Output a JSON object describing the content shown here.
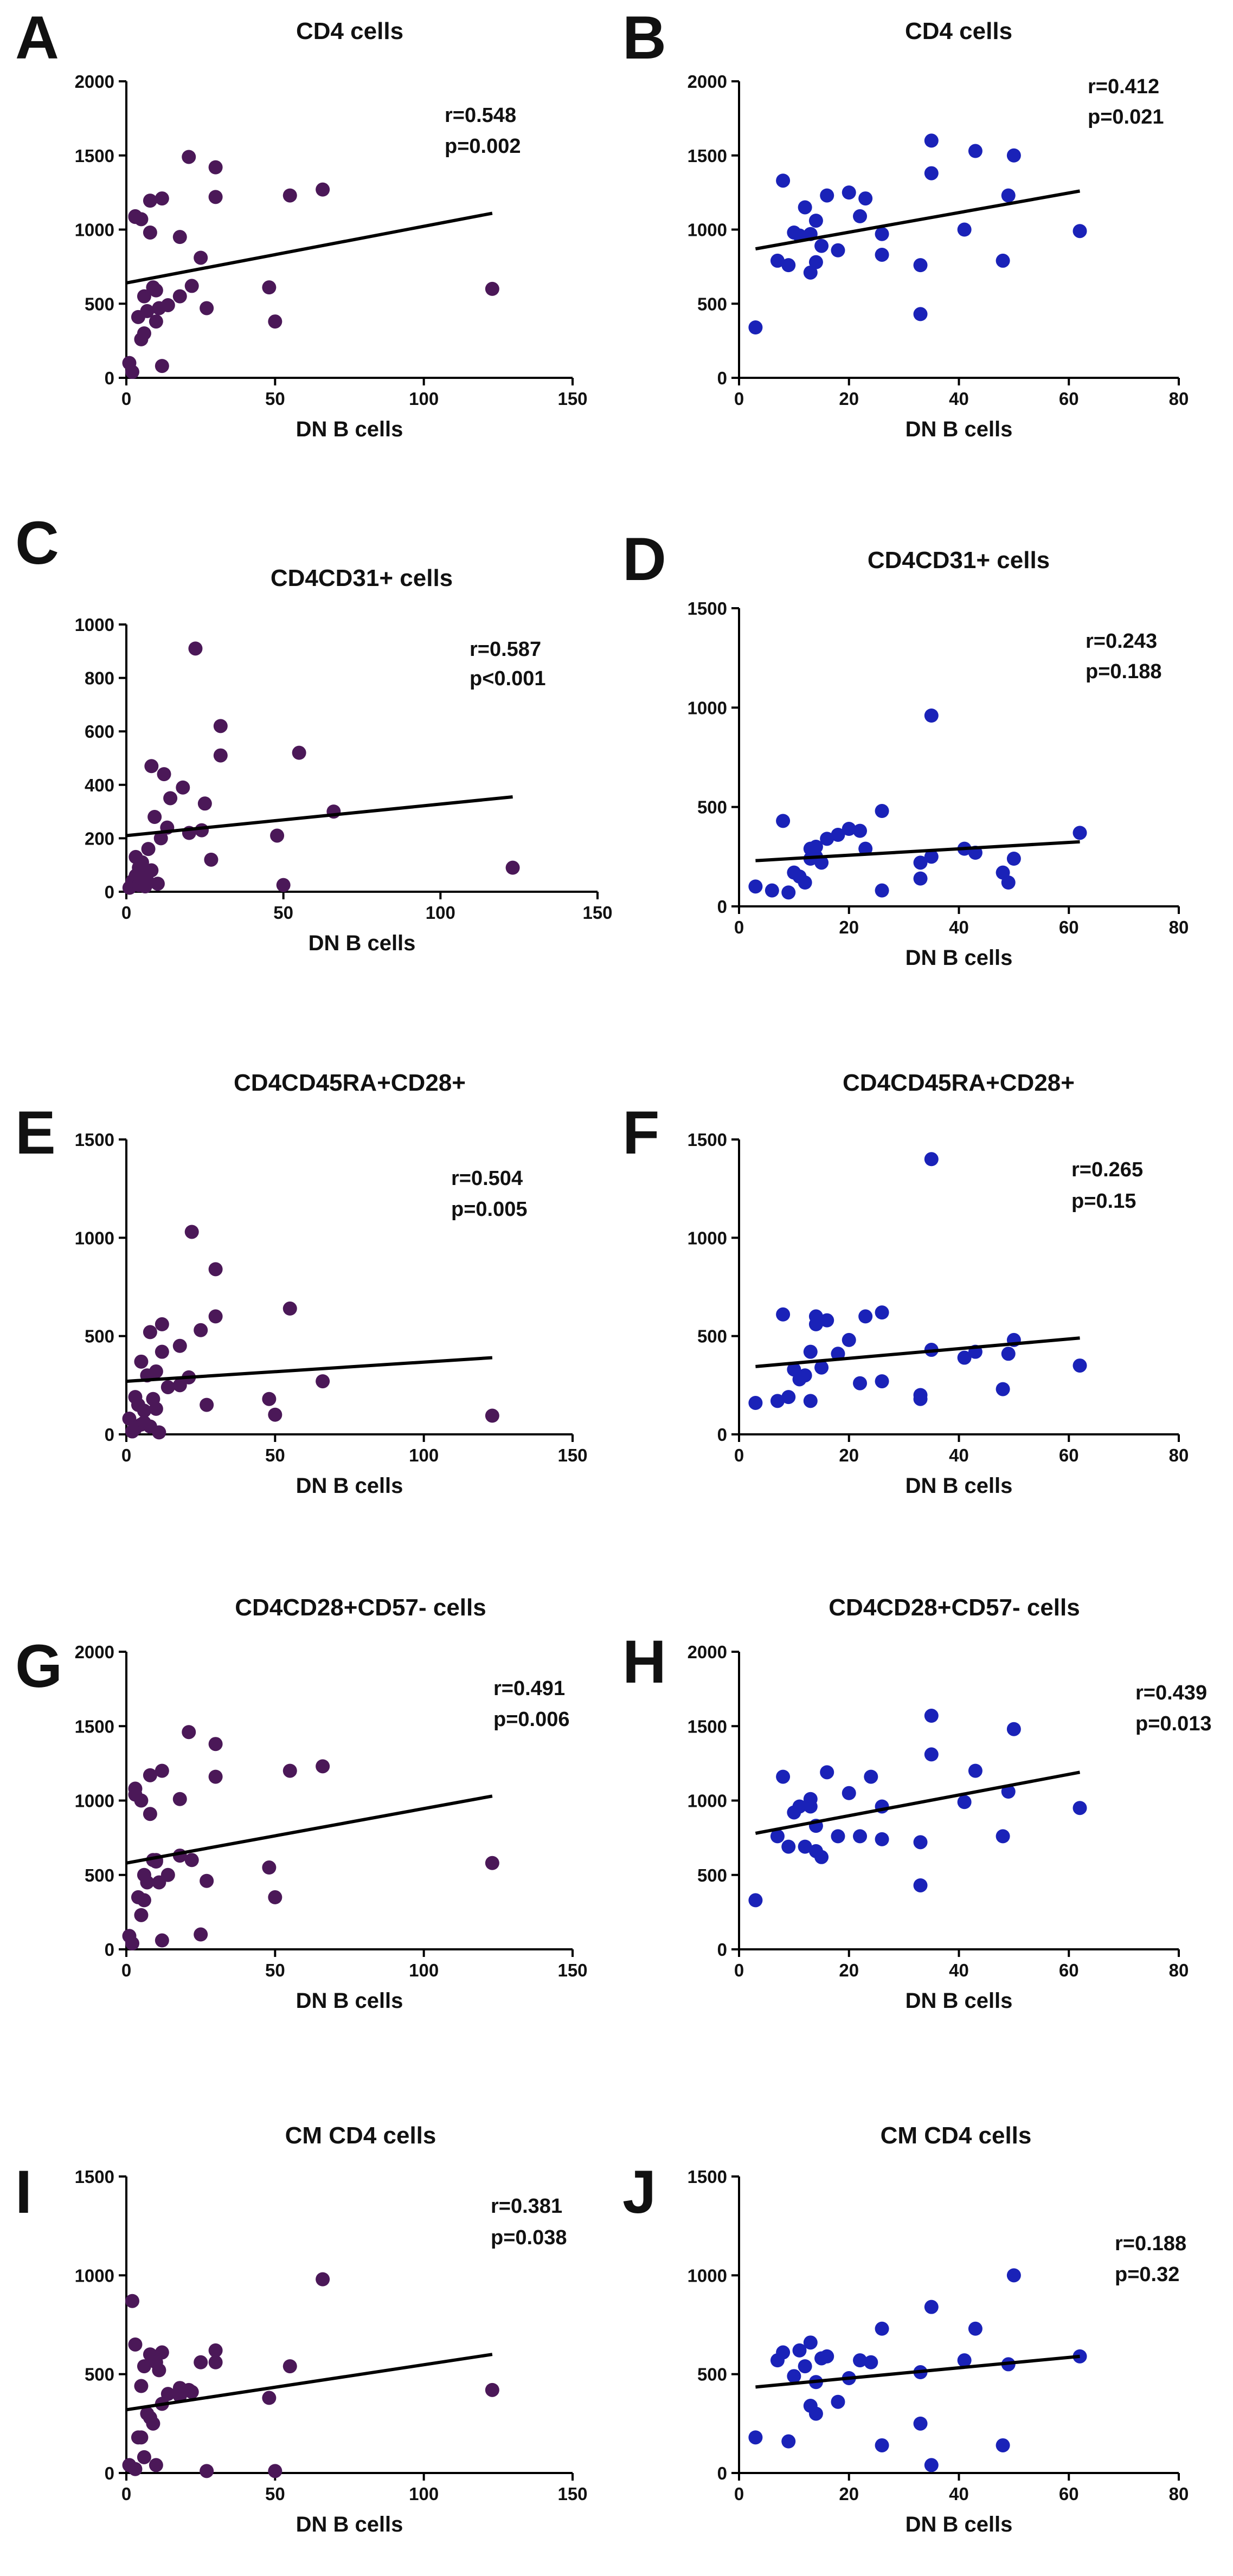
{
  "figure_colors": {
    "series_left": "#4b1858",
    "series_right": "#1a22b8",
    "fit_line": "#000000",
    "axis": "#000000"
  },
  "chart_data": [
    {
      "panel": "A",
      "type": "scatter",
      "title": "CD4 cells",
      "xlabel": "DN B cells",
      "ylabel": "",
      "xlim": [
        0,
        150
      ],
      "ylim": [
        0,
        2000
      ],
      "xticks": [
        0,
        50,
        100,
        150
      ],
      "yticks": [
        0,
        500,
        1000,
        1500,
        2000
      ],
      "r_text": "r=0.548",
      "p_text": "p=0.002",
      "color": "#4b1858",
      "fit": {
        "x": [
          0,
          123
        ],
        "y": [
          640,
          1110
        ]
      },
      "x": [
        1,
        2,
        3,
        3,
        4,
        5,
        5,
        6,
        6,
        7,
        8,
        8,
        9,
        10,
        10,
        11,
        12,
        12,
        14,
        18,
        18,
        21,
        22,
        25,
        27,
        30,
        30,
        48,
        50,
        55,
        66,
        123
      ],
      "y": [
        100,
        40,
        1090,
        1085,
        410,
        1070,
        260,
        550,
        300,
        450,
        1195,
        980,
        610,
        590,
        380,
        470,
        80,
        1210,
        490,
        950,
        550,
        1490,
        620,
        810,
        470,
        1420,
        1220,
        610,
        380,
        1230,
        1270,
        600
      ]
    },
    {
      "panel": "B",
      "type": "scatter",
      "title": "CD4 cells",
      "xlabel": "DN B cells",
      "ylabel": "",
      "xlim": [
        0,
        80
      ],
      "ylim": [
        0,
        2000
      ],
      "xticks": [
        0,
        20,
        40,
        60,
        80
      ],
      "yticks": [
        0,
        500,
        1000,
        1500,
        2000
      ],
      "r_text": "r=0.412",
      "p_text": "p=0.021",
      "color": "#1a22b8",
      "fit": {
        "x": [
          3,
          62
        ],
        "y": [
          870,
          1260
        ]
      },
      "x": [
        3,
        7,
        8,
        9,
        10,
        11,
        12,
        13,
        13,
        14,
        14,
        15,
        16,
        18,
        20,
        22,
        23,
        26,
        26,
        33,
        33,
        35,
        35,
        41,
        43,
        48,
        49,
        50,
        62
      ],
      "y": [
        340,
        790,
        1330,
        760,
        980,
        960,
        1150,
        710,
        970,
        1060,
        780,
        890,
        1230,
        860,
        1250,
        1090,
        1210,
        970,
        830,
        760,
        430,
        1600,
        1380,
        1000,
        1530,
        790,
        1230,
        1500,
        990
      ]
    },
    {
      "panel": "C",
      "type": "scatter",
      "title": "CD4CD31+ cells",
      "xlabel": "DN B cells",
      "ylabel": "",
      "xlim": [
        0,
        150
      ],
      "ylim": [
        0,
        1000
      ],
      "xticks": [
        0,
        50,
        100,
        150
      ],
      "yticks": [
        0,
        200,
        400,
        600,
        800,
        1000
      ],
      "r_text": "r=0.587",
      "p_text": "p<0.001",
      "color": "#4b1858",
      "fit": {
        "x": [
          0,
          123
        ],
        "y": [
          210,
          355
        ]
      },
      "x": [
        1,
        2,
        3,
        3,
        4,
        4,
        5,
        5,
        6,
        6,
        7,
        7,
        8,
        8,
        9,
        10,
        11,
        12,
        13,
        14,
        18,
        20,
        22,
        24,
        25,
        27,
        30,
        30,
        48,
        50,
        55,
        66,
        123
      ],
      "y": [
        15,
        40,
        60,
        130,
        25,
        90,
        110,
        45,
        20,
        70,
        160,
        35,
        470,
        80,
        280,
        30,
        200,
        440,
        240,
        350,
        390,
        220,
        910,
        230,
        330,
        120,
        620,
        510,
        210,
        25,
        520,
        300,
        90
      ]
    },
    {
      "panel": "D",
      "type": "scatter",
      "title": "CD4CD31+ cells",
      "xlabel": "DN B cells",
      "ylabel": "",
      "xlim": [
        0,
        80
      ],
      "ylim": [
        0,
        1500
      ],
      "xticks": [
        0,
        20,
        40,
        60,
        80
      ],
      "yticks": [
        0,
        500,
        1000,
        1500
      ],
      "r_text": "r=0.243",
      "p_text": "p=0.188",
      "color": "#1a22b8",
      "fit": {
        "x": [
          3,
          62
        ],
        "y": [
          230,
          325
        ]
      },
      "x": [
        3,
        6,
        8,
        9,
        10,
        11,
        12,
        13,
        13,
        14,
        14,
        15,
        16,
        18,
        20,
        22,
        23,
        26,
        26,
        33,
        33,
        35,
        35,
        41,
        43,
        48,
        49,
        50,
        62
      ],
      "y": [
        100,
        80,
        430,
        70,
        170,
        150,
        120,
        240,
        290,
        300,
        250,
        220,
        340,
        360,
        390,
        380,
        290,
        480,
        80,
        220,
        140,
        960,
        250,
        290,
        270,
        170,
        120,
        240,
        370
      ]
    },
    {
      "panel": "E",
      "type": "scatter",
      "title": "CD4CD45RA+CD28+",
      "xlabel": "DN B cells",
      "ylabel": "",
      "xlim": [
        0,
        150
      ],
      "ylim": [
        0,
        1500
      ],
      "xticks": [
        0,
        50,
        100,
        150
      ],
      "yticks": [
        0,
        500,
        1000,
        1500
      ],
      "r_text": "r=0.504",
      "p_text": "p=0.005",
      "color": "#4b1858",
      "fit": {
        "x": [
          0,
          123
        ],
        "y": [
          270,
          390
        ]
      },
      "x": [
        1,
        2,
        3,
        3,
        4,
        5,
        5,
        6,
        6,
        7,
        8,
        8,
        9,
        10,
        10,
        11,
        12,
        12,
        14,
        18,
        18,
        21,
        22,
        25,
        27,
        30,
        30,
        48,
        50,
        55,
        66,
        123
      ],
      "y": [
        80,
        15,
        190,
        30,
        150,
        370,
        50,
        120,
        60,
        300,
        520,
        40,
        180,
        320,
        130,
        10,
        420,
        560,
        240,
        450,
        250,
        290,
        1030,
        530,
        150,
        600,
        840,
        180,
        100,
        640,
        270,
        95
      ]
    },
    {
      "panel": "F",
      "type": "scatter",
      "title": "CD4CD45RA+CD28+",
      "xlabel": "DN B cells",
      "ylabel": "",
      "xlim": [
        0,
        80
      ],
      "ylim": [
        0,
        1500
      ],
      "xticks": [
        0,
        20,
        40,
        60,
        80
      ],
      "yticks": [
        0,
        500,
        1000,
        1500
      ],
      "r_text": "r=0.265",
      "p_text": "p=0.15",
      "color": "#1a22b8",
      "fit": {
        "x": [
          3,
          62
        ],
        "y": [
          345,
          490
        ]
      },
      "x": [
        3,
        7,
        8,
        9,
        10,
        11,
        12,
        13,
        13,
        14,
        14,
        15,
        16,
        18,
        20,
        22,
        23,
        26,
        26,
        33,
        33,
        35,
        35,
        41,
        43,
        48,
        49,
        50,
        62
      ],
      "y": [
        160,
        170,
        610,
        190,
        330,
        280,
        300,
        420,
        170,
        560,
        600,
        340,
        580,
        410,
        480,
        260,
        600,
        620,
        270,
        200,
        180,
        1400,
        430,
        390,
        420,
        230,
        410,
        480,
        350
      ]
    },
    {
      "panel": "G",
      "type": "scatter",
      "title": "CD4CD28+CD57- cells",
      "xlabel": "DN B cells",
      "ylabel": "",
      "xlim": [
        0,
        150
      ],
      "ylim": [
        0,
        2000
      ],
      "xticks": [
        0,
        50,
        100,
        150
      ],
      "yticks": [
        0,
        500,
        1000,
        1500,
        2000
      ],
      "r_text": "r=0.491",
      "p_text": "p=0.006",
      "color": "#4b1858",
      "fit": {
        "x": [
          0,
          123
        ],
        "y": [
          580,
          1030
        ]
      },
      "x": [
        1,
        2,
        3,
        3,
        4,
        5,
        5,
        6,
        6,
        7,
        8,
        8,
        9,
        10,
        10,
        11,
        12,
        12,
        14,
        18,
        18,
        21,
        22,
        25,
        27,
        30,
        30,
        48,
        50,
        55,
        66,
        123
      ],
      "y": [
        90,
        40,
        1080,
        1040,
        350,
        1000,
        230,
        500,
        330,
        450,
        1170,
        910,
        600,
        590,
        600,
        450,
        60,
        1200,
        500,
        1010,
        630,
        1460,
        600,
        100,
        460,
        1380,
        1160,
        550,
        350,
        1200,
        1230,
        580
      ]
    },
    {
      "panel": "H",
      "type": "scatter",
      "title": "CD4CD28+CD57- cells",
      "xlabel": "DN B cells",
      "ylabel": "",
      "xlim": [
        0,
        80
      ],
      "ylim": [
        0,
        2000
      ],
      "xticks": [
        0,
        20,
        40,
        60,
        80
      ],
      "yticks": [
        0,
        500,
        1000,
        1500,
        2000
      ],
      "r_text": "r=0.439",
      "p_text": "p=0.013",
      "color": "#1a22b8",
      "fit": {
        "x": [
          3,
          62
        ],
        "y": [
          780,
          1190
        ]
      },
      "x": [
        3,
        7,
        8,
        9,
        10,
        11,
        12,
        13,
        13,
        14,
        14,
        15,
        16,
        18,
        20,
        22,
        24,
        26,
        26,
        33,
        33,
        35,
        35,
        41,
        43,
        48,
        49,
        50,
        62
      ],
      "y": [
        330,
        760,
        1160,
        690,
        920,
        960,
        690,
        960,
        1010,
        830,
        660,
        620,
        1190,
        760,
        1050,
        760,
        1160,
        960,
        740,
        720,
        430,
        1570,
        1310,
        990,
        1200,
        760,
        1060,
        1480,
        950
      ]
    },
    {
      "panel": "I",
      "type": "scatter",
      "title": "CM CD4 cells",
      "xlabel": "DN B cells",
      "ylabel": "",
      "xlim": [
        0,
        150
      ],
      "ylim": [
        0,
        1500
      ],
      "xticks": [
        0,
        50,
        100,
        150
      ],
      "yticks": [
        0,
        500,
        1000,
        1500
      ],
      "r_text": "r=0.381",
      "p_text": "p=0.038",
      "color": "#4b1858",
      "fit": {
        "x": [
          0,
          123
        ],
        "y": [
          320,
          600
        ]
      },
      "x": [
        1,
        2,
        3,
        3,
        4,
        5,
        5,
        6,
        6,
        7,
        8,
        8,
        9,
        10,
        10,
        11,
        12,
        12,
        14,
        18,
        18,
        21,
        22,
        25,
        27,
        30,
        30,
        48,
        50,
        55,
        66,
        123
      ],
      "y": [
        40,
        870,
        20,
        650,
        180,
        180,
        440,
        80,
        540,
        300,
        600,
        280,
        250,
        40,
        560,
        520,
        610,
        350,
        400,
        390,
        430,
        420,
        410,
        560,
        10,
        620,
        560,
        380,
        10,
        540,
        980,
        420
      ]
    },
    {
      "panel": "J",
      "type": "scatter",
      "title": "CM CD4 cells",
      "xlabel": "DN B cells",
      "ylabel": "",
      "xlim": [
        0,
        80
      ],
      "ylim": [
        0,
        1500
      ],
      "xticks": [
        0,
        20,
        40,
        60,
        80
      ],
      "yticks": [
        0,
        500,
        1000,
        1500
      ],
      "r_text": "r=0.188",
      "p_text": "p=0.32",
      "color": "#1a22b8",
      "fit": {
        "x": [
          3,
          62
        ],
        "y": [
          435,
          590
        ]
      },
      "x": [
        3,
        7,
        8,
        9,
        10,
        11,
        12,
        13,
        13,
        14,
        14,
        15,
        16,
        18,
        20,
        22,
        24,
        26,
        26,
        33,
        33,
        35,
        35,
        41,
        43,
        48,
        49,
        50,
        62
      ],
      "y": [
        180,
        570,
        610,
        160,
        490,
        620,
        540,
        660,
        340,
        460,
        300,
        580,
        590,
        360,
        480,
        570,
        560,
        140,
        730,
        510,
        250,
        840,
        40,
        570,
        730,
        140,
        550,
        1000,
        590
      ]
    }
  ]
}
